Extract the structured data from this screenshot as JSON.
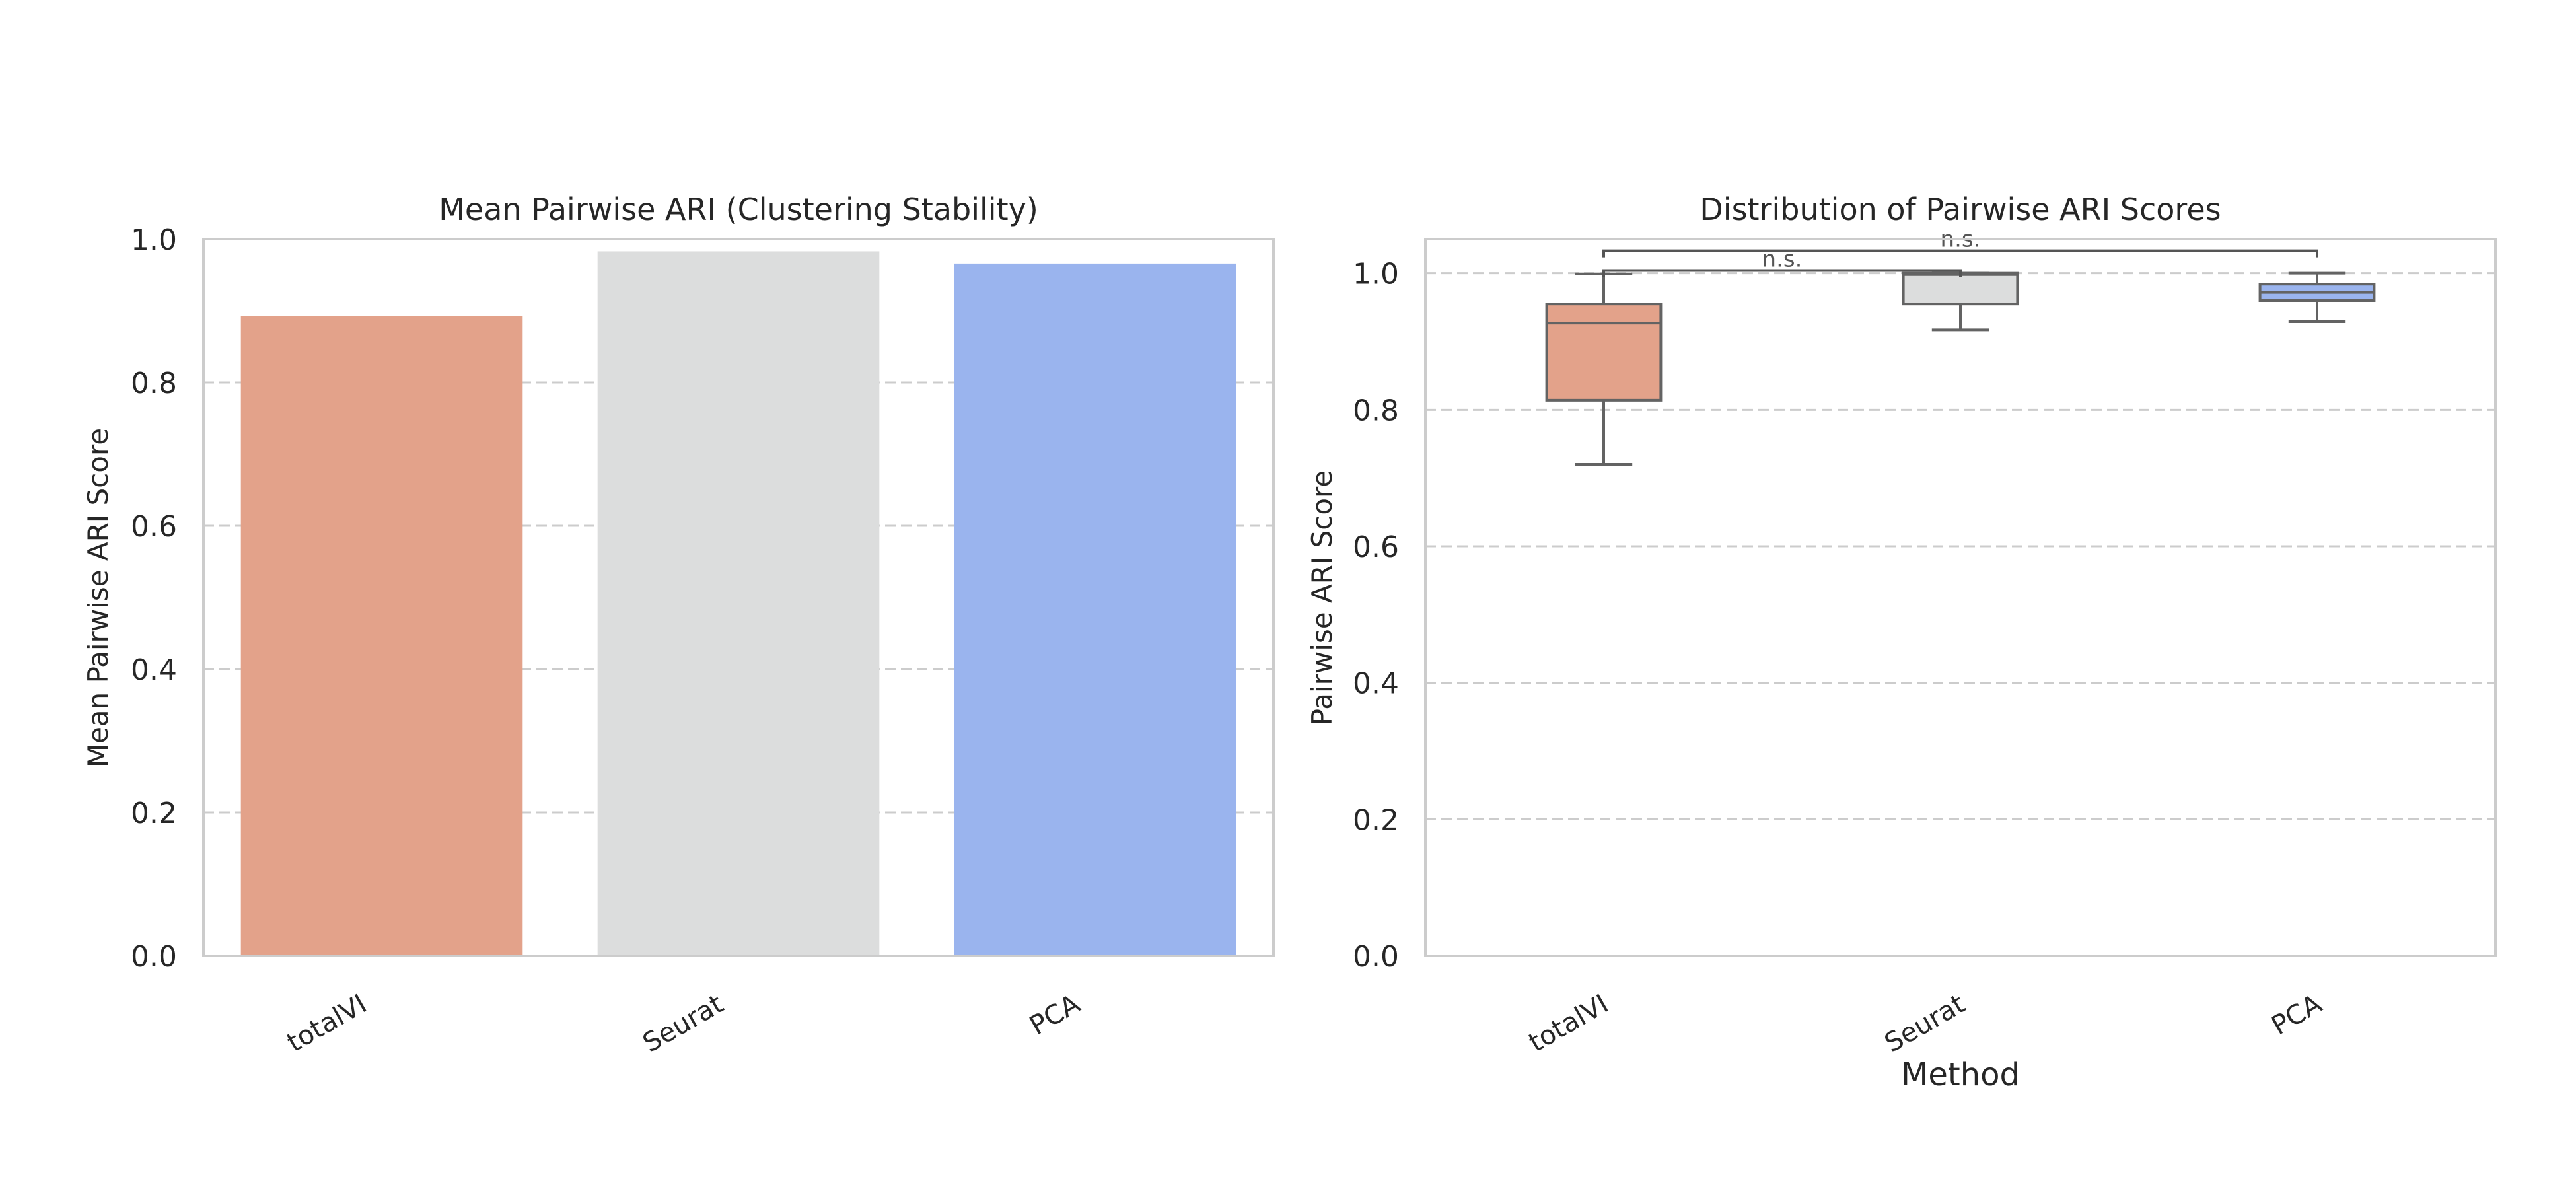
{
  "chart_data": [
    {
      "type": "bar",
      "title": "Mean Pairwise ARI (Clustering Stability)",
      "xlabel": "",
      "ylabel": "Mean Pairwise ARI Score",
      "categories": [
        "totalVI",
        "Seurat",
        "PCA"
      ],
      "values": [
        0.893,
        0.983,
        0.966
      ],
      "ylim": [
        0,
        1.0
      ],
      "yticks": [
        "0.0",
        "0.2",
        "0.4",
        "0.6",
        "0.8",
        "1.0"
      ],
      "colors": [
        "#e3a28a",
        "#dcdddd",
        "#9ab4ee"
      ],
      "grid": true
    },
    {
      "type": "box",
      "title": "Distribution of Pairwise ARI Scores",
      "xlabel": "Method",
      "ylabel": "Pairwise ARI Score",
      "categories": [
        "totalVI",
        "Seurat",
        "PCA"
      ],
      "boxes": [
        {
          "whislo": 0.72,
          "q1": 0.814,
          "med": 0.927,
          "q3": 0.955,
          "whishi": 0.999
        },
        {
          "whislo": 0.917,
          "q1": 0.955,
          "med": 0.998,
          "q3": 1.0,
          "whishi": 1.0
        },
        {
          "whislo": 0.929,
          "q1": 0.96,
          "med": 0.972,
          "q3": 0.984,
          "whishi": 1.0
        }
      ],
      "ylim": [
        0,
        1.05
      ],
      "yticks": [
        "0.0",
        "0.2",
        "0.4",
        "0.6",
        "0.8",
        "1.0"
      ],
      "colors": [
        "#e3a28a",
        "#dcdddd",
        "#9ab4ee"
      ],
      "annotations": [
        {
          "from": 0,
          "to": 1,
          "y": 1.004,
          "label": "n.s."
        },
        {
          "from": 0,
          "to": 2,
          "y": 1.033,
          "label": "n.s."
        }
      ],
      "grid": true
    }
  ]
}
